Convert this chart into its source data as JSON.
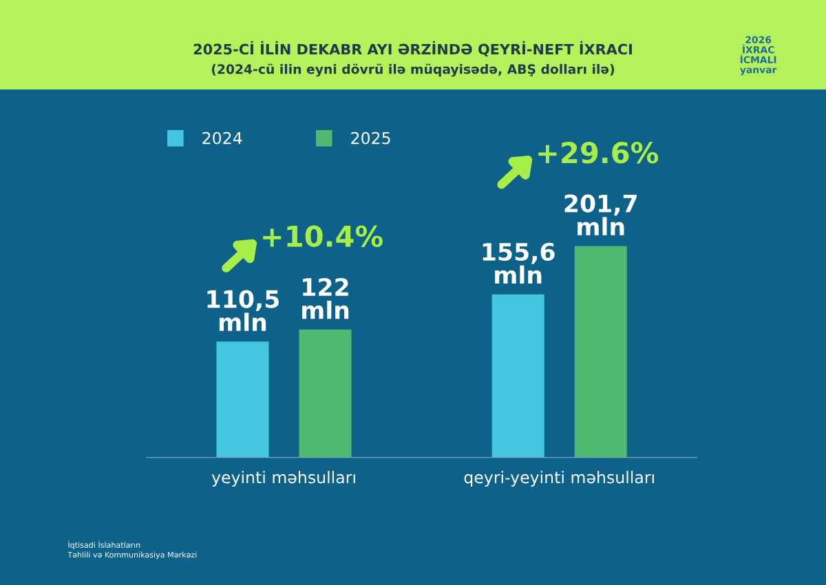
{
  "chart_data": {
    "type": "bar",
    "title": "2025-Cİ İLİN DEKABR AYI ƏRZİNDƏ QEYRİ-NEFT İXRACI",
    "subtitle": "(2024-cü ilin eyni dövrü ilə müqayisədə, ABŞ dolları ilə)",
    "categories": [
      "yeyinti məhsulları",
      "qeyri-yeyinti məhsulları"
    ],
    "series": [
      {
        "name": "2024",
        "color": "#45c6e0",
        "values": [
          110.5,
          155.6
        ],
        "value_labels": [
          "110,5\nmln",
          "155,6\nmln"
        ]
      },
      {
        "name": "2025",
        "color": "#4fba6f",
        "values": [
          122,
          201.7
        ],
        "value_labels": [
          "122\nmln",
          "201,7\nmln"
        ]
      }
    ],
    "annotations": [
      "+10.4%",
      "+29.6%",
      "2026\nİXRAC\nİCMALI\nyanvar",
      "İqtisadi İslahatların\nTəhlili və Kommunikasiya Mərkəzi"
    ],
    "legend": "top left",
    "grid": false,
    "tick_labels": "x"
  }
}
